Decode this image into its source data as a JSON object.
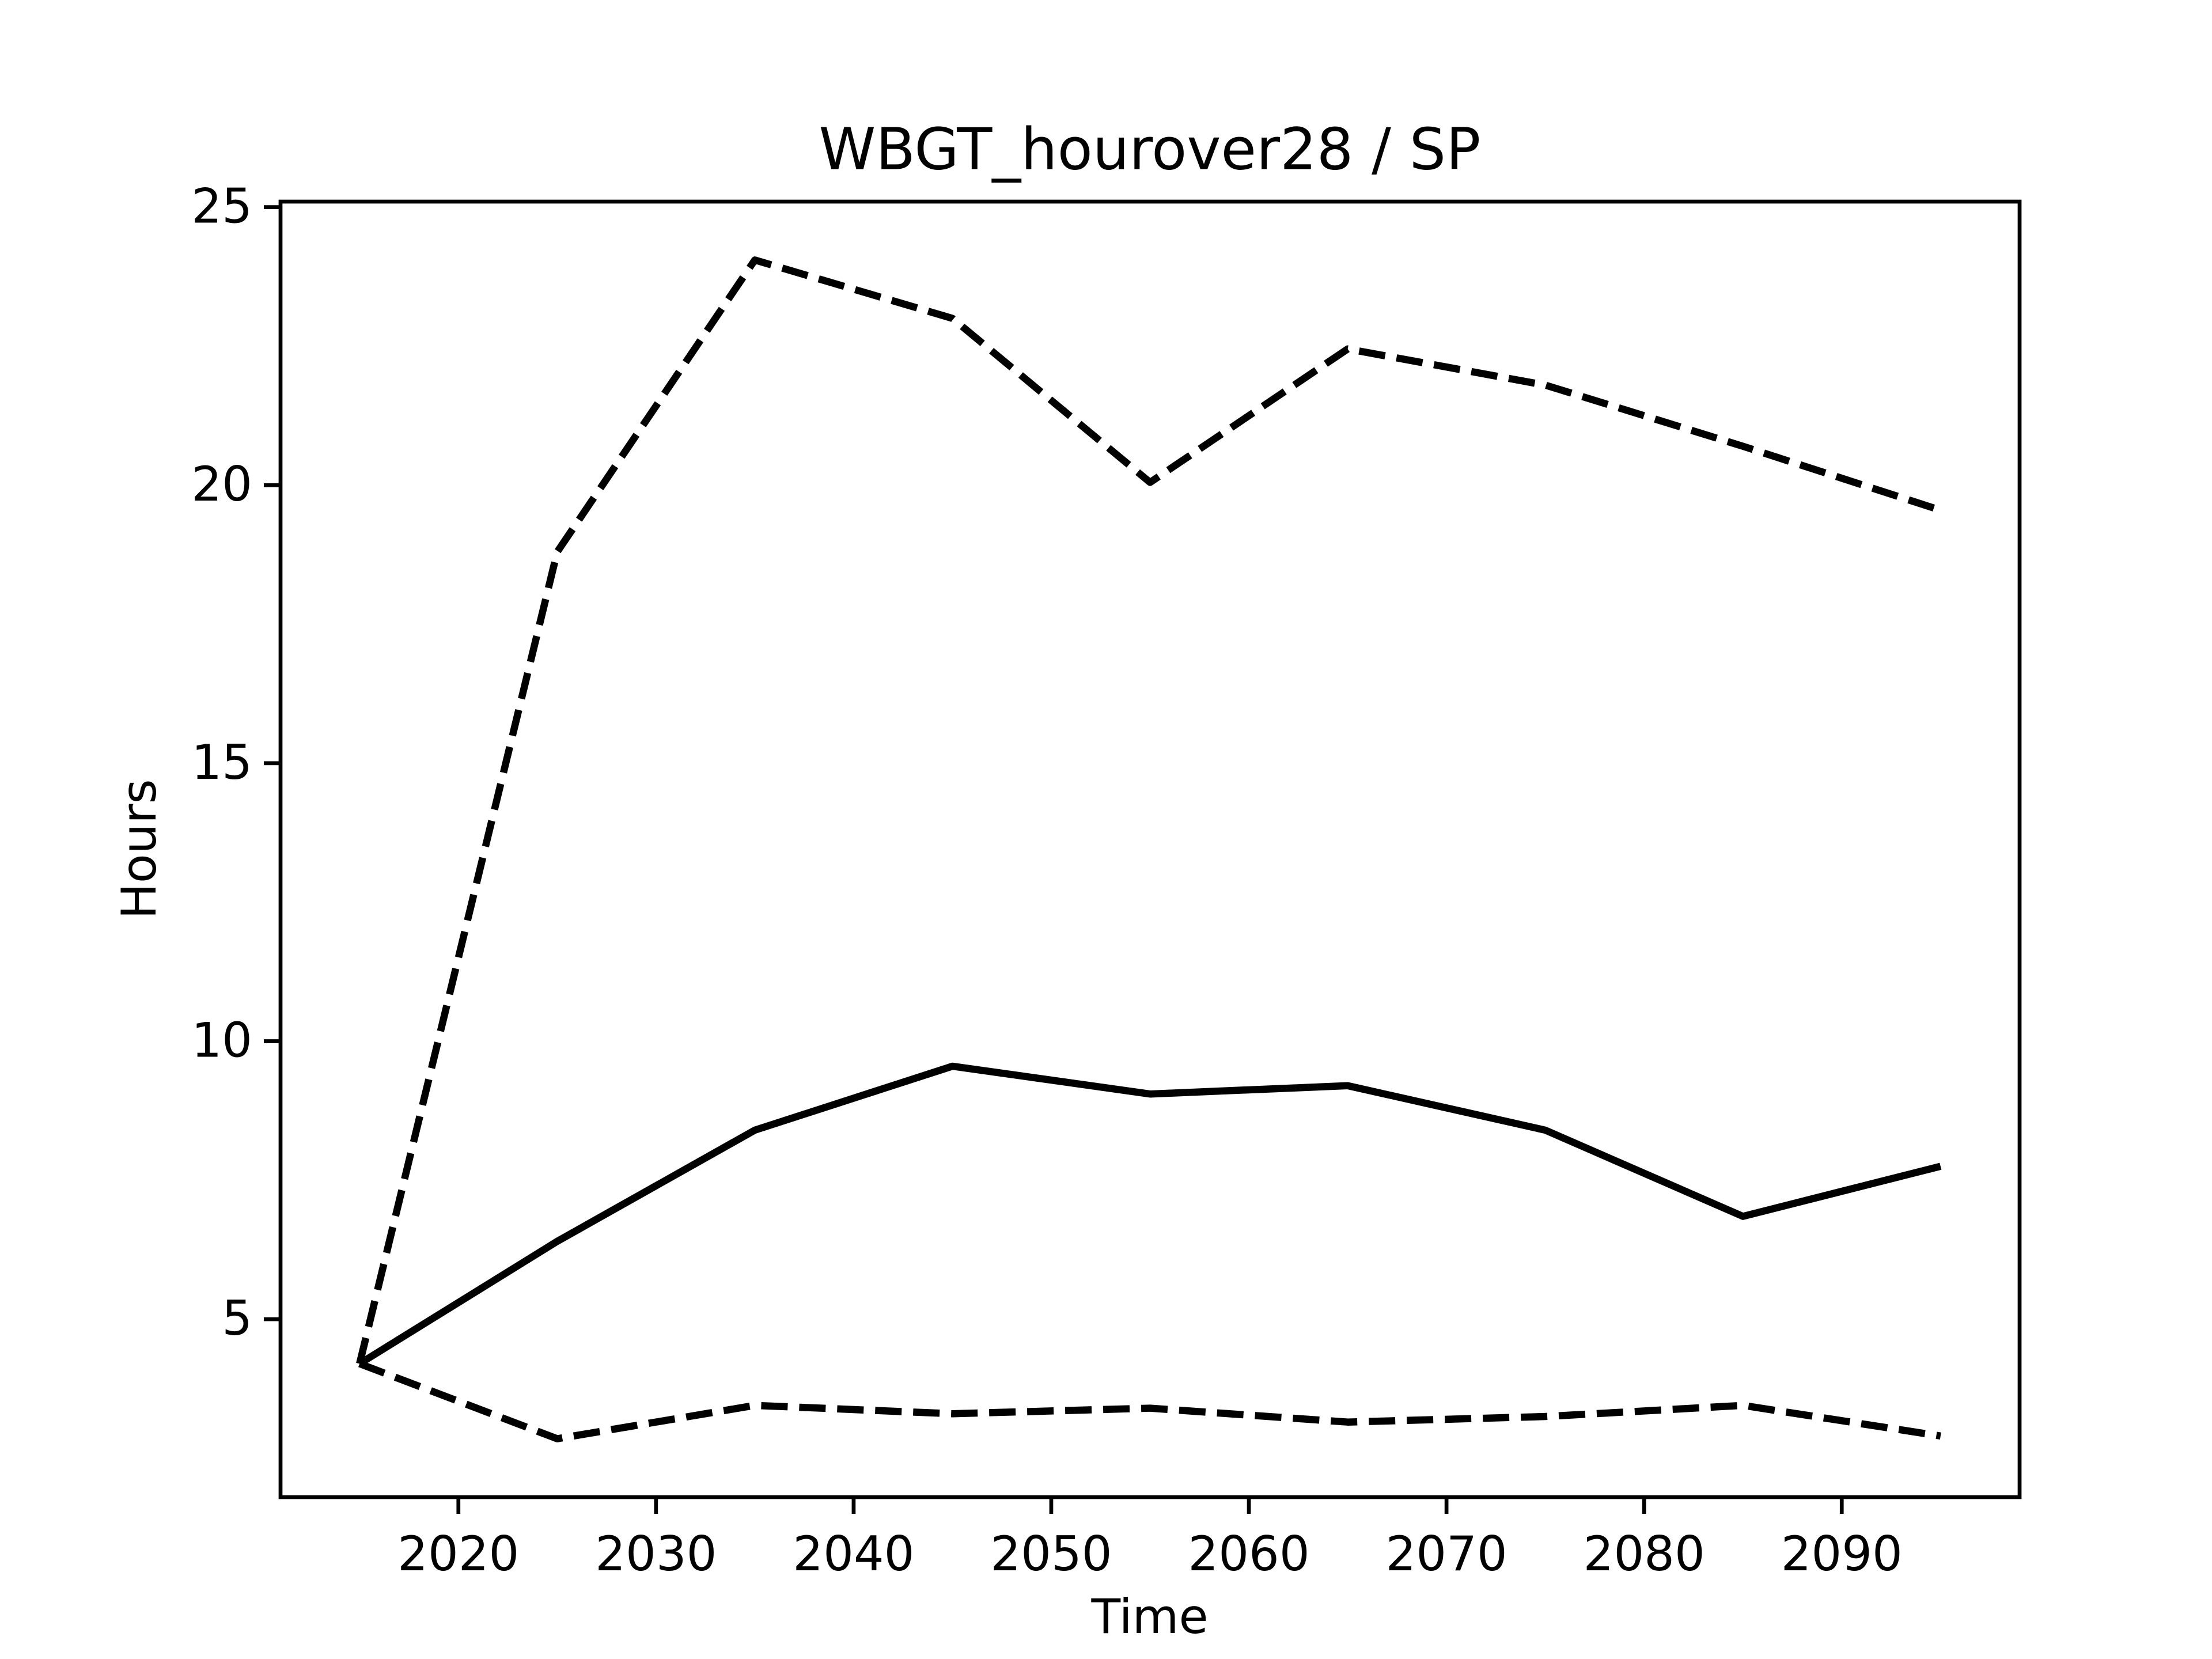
{
  "chart_data": {
    "type": "line",
    "title": "WBGT_hourover28 / SP",
    "xlabel": "Time",
    "ylabel": "Hours",
    "x": [
      2015,
      2025,
      2035,
      2045,
      2055,
      2065,
      2075,
      2085,
      2095
    ],
    "series": [
      {
        "color": "#000000",
        "linestyle": "solid",
        "values": [
          4.2,
          6.4,
          8.4,
          9.55,
          9.05,
          9.2,
          8.4,
          6.85,
          7.75
        ]
      },
      {
        "color": "#000000",
        "linestyle": "dashed",
        "values": [
          4.2,
          18.8,
          24.05,
          23.0,
          20.05,
          22.45,
          21.8,
          20.7,
          19.55
        ]
      },
      {
        "color": "#000000",
        "linestyle": "dashed",
        "values": [
          4.2,
          2.85,
          3.45,
          3.3,
          3.4,
          3.15,
          3.25,
          3.45,
          2.9
        ]
      }
    ],
    "xlim": [
      2011,
      2099
    ],
    "xticks": [
      2020,
      2030,
      2040,
      2050,
      2060,
      2070,
      2080,
      2090
    ],
    "ylim": [
      1.8,
      25.1
    ],
    "yticks": [
      5,
      10,
      15,
      20,
      25
    ],
    "grid": false
  }
}
